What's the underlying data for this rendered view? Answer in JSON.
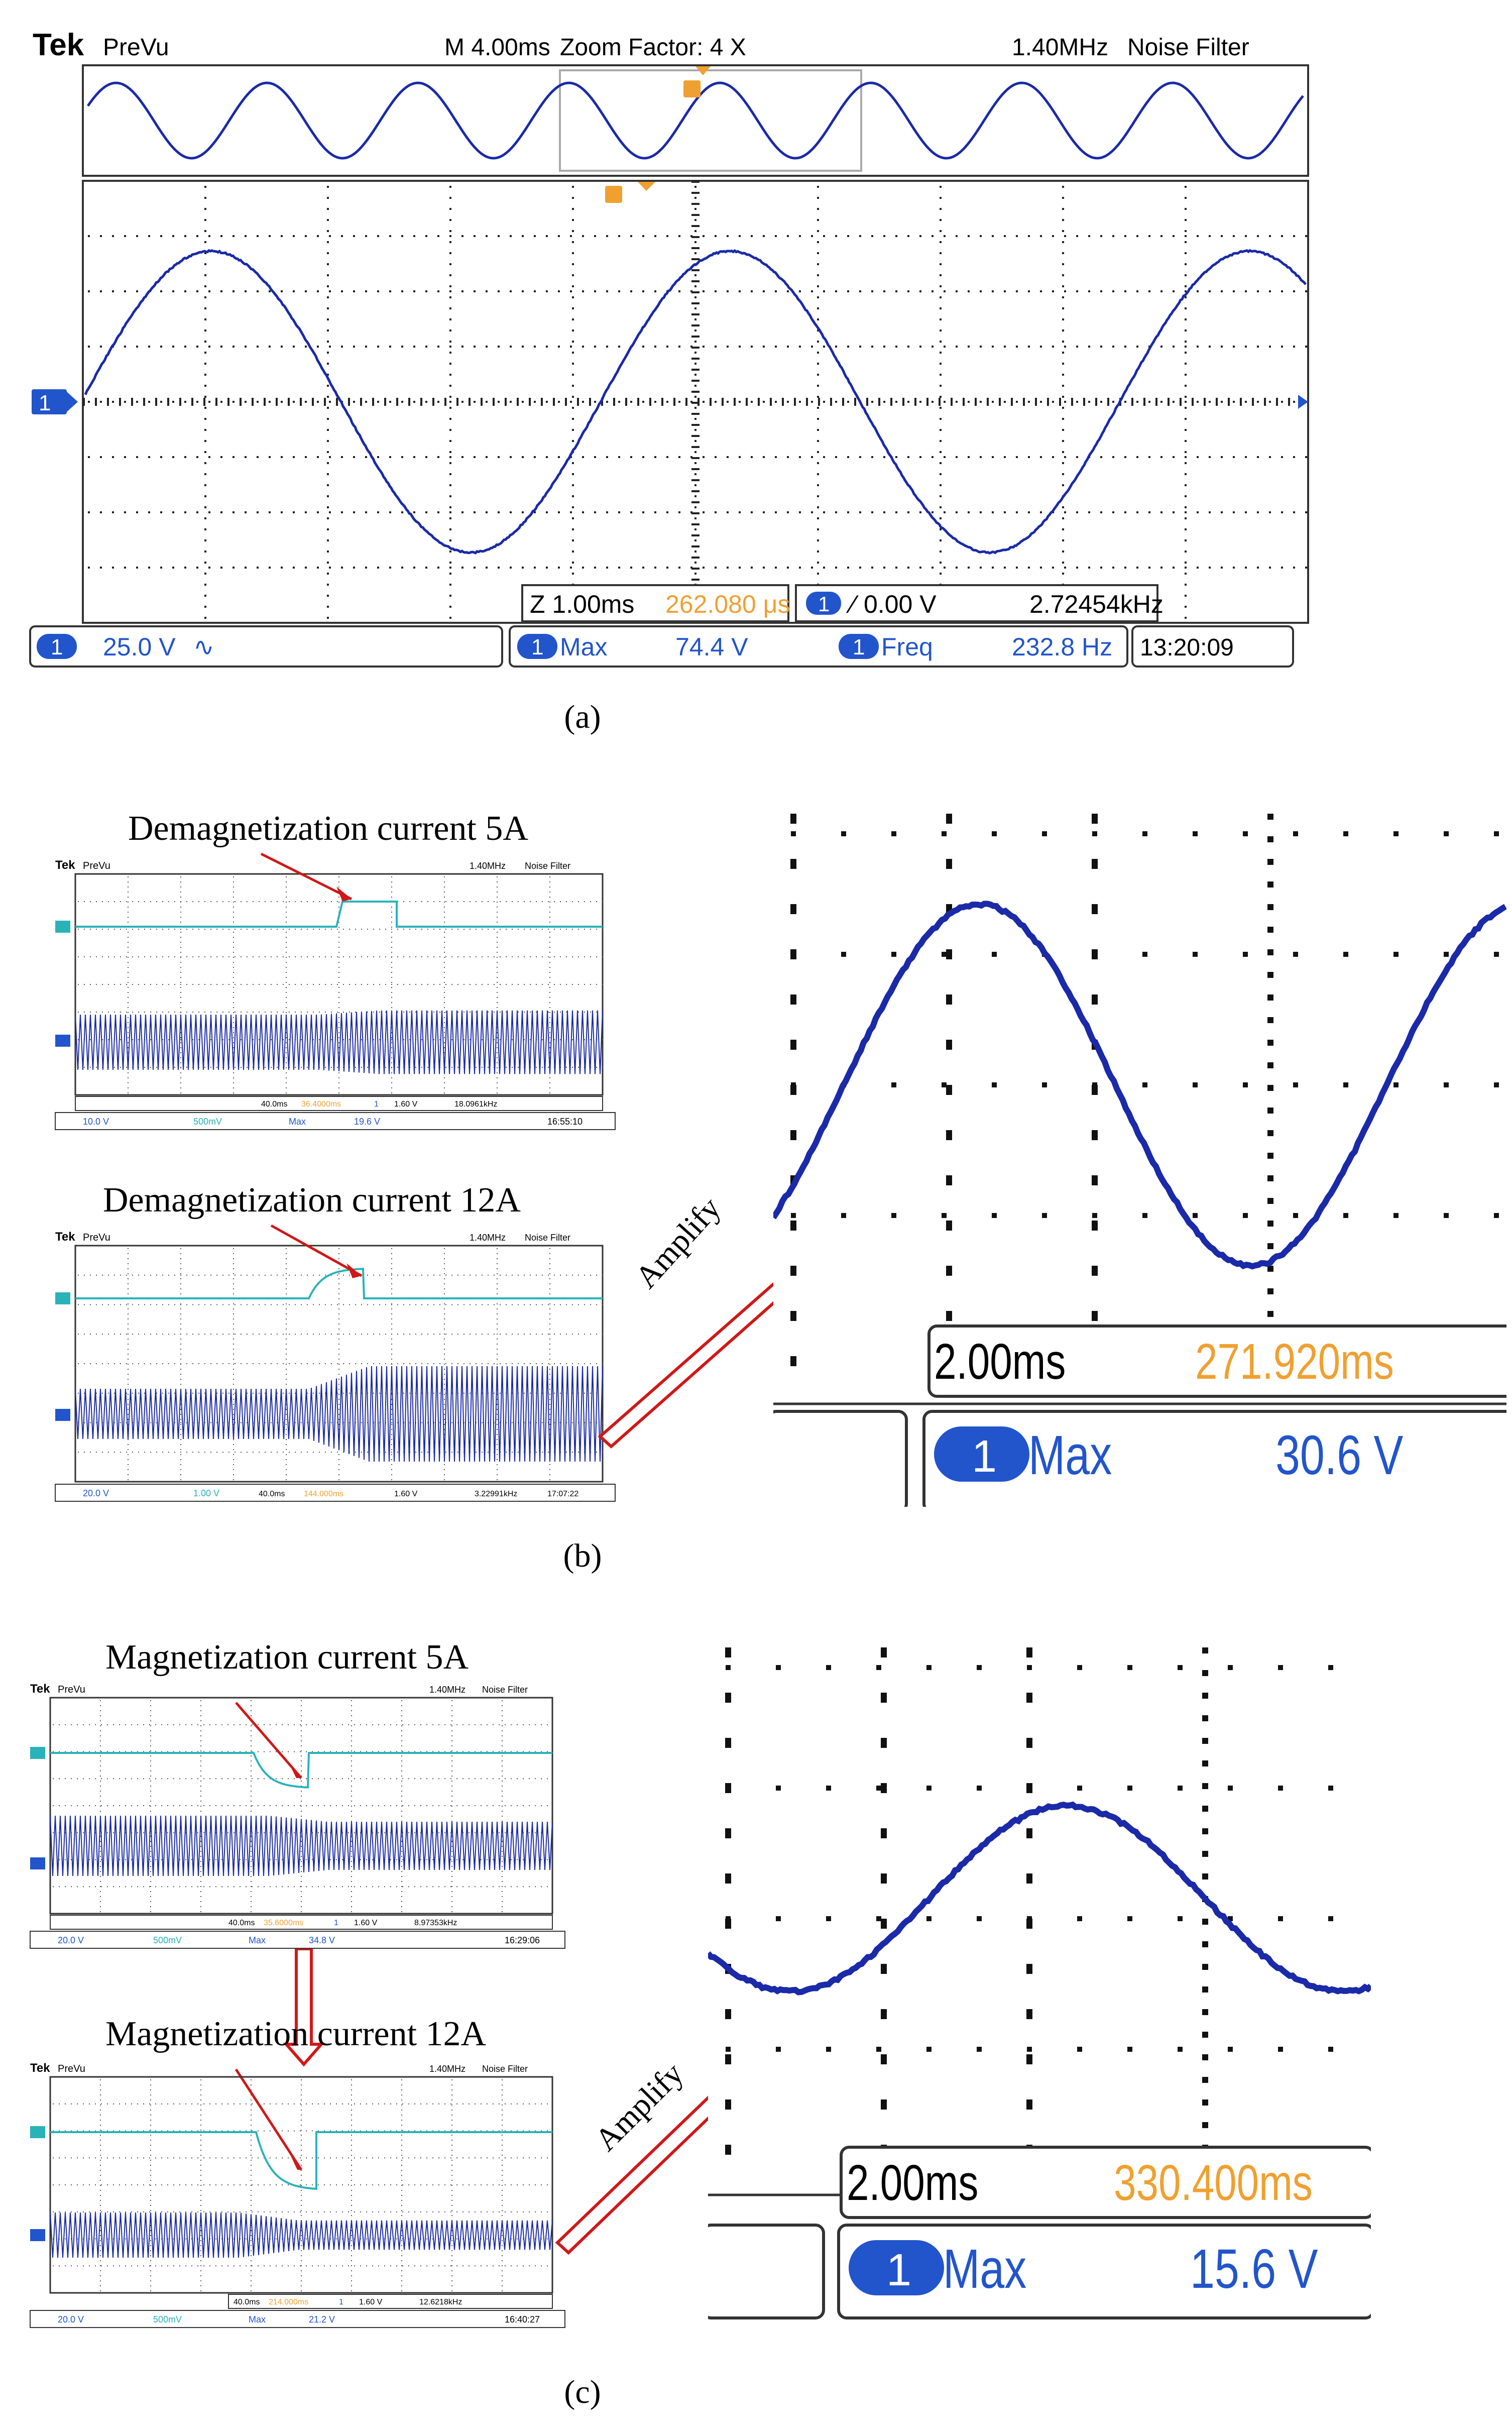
{
  "colors": {
    "trace_ch1": "#1a2aa8",
    "trace_ch2": "#29b3b8",
    "marker_orange": "#f0a030",
    "bar_blue": "#2255cc",
    "grid": "#222222",
    "frame": "#333333",
    "arrow_red": "#d01818"
  },
  "panel_a": {
    "caption": "(a)",
    "header": {
      "brand": "Tek",
      "mode": "PreVu",
      "timebase": "M 4.00ms",
      "zoom": "Zoom Factor: 4 X",
      "bandwidth": "1.40MHz",
      "filter": "Noise Filter"
    },
    "channel_marker": "1",
    "zoom_box": {
      "zoom_time": "Z 1.00ms",
      "zoom_pos": "262.080 μs",
      "ch": "1",
      "trigger": "0.00 V",
      "freq": "2.72454kHz"
    },
    "bottom_bar": {
      "ch": "1",
      "scale": "25.0 V",
      "coupling": "∿",
      "meas1_ch": "1",
      "meas1_label": "Max",
      "meas1_value": "74.4 V",
      "meas2_ch": "1",
      "meas2_label": "Freq",
      "meas2_value": "232.8 Hz",
      "time": "13:20:09"
    }
  },
  "panel_b": {
    "caption": "(b)",
    "scope_top": {
      "annotation": "Demagnetization current 5A",
      "brand": "Tek",
      "mode": "PreVu",
      "bandwidth": "1.40MHz",
      "filter": "Noise Filter",
      "status_row": [
        "40.0ms",
        "36.4000ms",
        "1",
        "1.60 V",
        "18.0961kHz"
      ],
      "bottom_row": [
        "10.0 V",
        "500mV",
        "Max",
        "19.6 V",
        "16:55:10"
      ]
    },
    "scope_bottom": {
      "annotation": "Demagnetization current 12A",
      "brand": "Tek",
      "mode": "PreVu",
      "bandwidth": "1.40MHz",
      "filter": "Noise Filter",
      "bottom_row": [
        "20.0 V",
        "1.00 V",
        "40.0ms",
        "144.000ms",
        "1.60 V",
        "3.22991kHz",
        "17:07:22"
      ]
    },
    "amplify_label": "Amplify",
    "zoom": {
      "time": "2.00ms",
      "pos": "271.920ms",
      "ch": "1",
      "label": "Max",
      "value": "30.6 V"
    }
  },
  "panel_c": {
    "caption": "(c)",
    "scope_top": {
      "annotation": "Magnetization current 5A",
      "brand": "Tek",
      "mode": "PreVu",
      "bandwidth": "1.40MHz",
      "filter": "Noise Filter",
      "status_row": [
        "40.0ms",
        "35.6000ms",
        "1",
        "1.60 V",
        "8.97353kHz"
      ],
      "bottom_row": [
        "20.0 V",
        "500mV",
        "Max",
        "34.8 V",
        "16:29:06"
      ]
    },
    "scope_bottom": {
      "annotation": "Magnetization current 12A",
      "brand": "Tek",
      "mode": "PreVu",
      "bandwidth": "1.40MHz",
      "filter": "Noise Filter",
      "status_row": [
        "40.0ms",
        "214.000ms",
        "1",
        "1.60 V",
        "12.6218kHz"
      ],
      "bottom_row": [
        "20.0 V",
        "500mV",
        "Max",
        "21.2 V",
        "16:40:27"
      ]
    },
    "amplify_label": "Amplify",
    "zoom": {
      "time": "2.00ms",
      "pos": "330.400ms",
      "ch": "1",
      "label": "Max",
      "value": "15.6 V"
    }
  }
}
